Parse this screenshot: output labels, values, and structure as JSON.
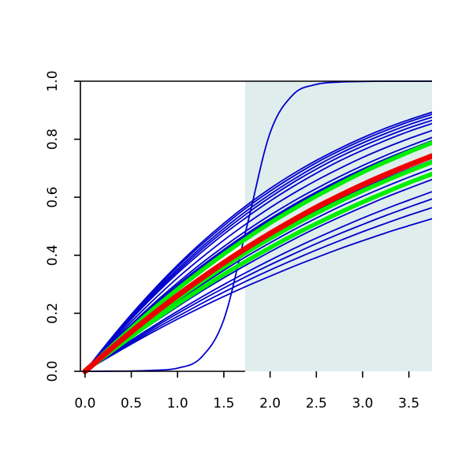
{
  "chart_data": {
    "type": "line",
    "title": "",
    "xlabel": "",
    "ylabel": "",
    "xlim": [
      -0.05,
      3.75
    ],
    "ylim": [
      0.0,
      1.0
    ],
    "x_ticks": [
      0.0,
      0.5,
      1.0,
      1.5,
      2.0,
      2.5,
      3.0,
      3.5
    ],
    "x_tick_labels": [
      "0.0",
      "0.5",
      "1.0",
      "1.5",
      "2.0",
      "2.5",
      "3.0",
      "3.5"
    ],
    "y_ticks": [
      0.0,
      0.2,
      0.4,
      0.6,
      0.8,
      1.0
    ],
    "y_tick_labels": [
      "0.0",
      "0.2",
      "0.4",
      "0.6",
      "0.8",
      "1.0"
    ],
    "shaded_region": {
      "x_from": 1.73,
      "x_to": 3.75,
      "color": "#e0eded"
    },
    "grid": false,
    "legend": "none",
    "x": [
      0.0,
      0.25,
      0.5,
      0.75,
      1.0,
      1.25,
      1.5,
      1.75,
      2.0,
      2.25,
      2.5,
      2.75,
      3.0,
      3.25,
      3.5,
      3.75
    ],
    "series": [
      {
        "color": "#0000cc",
        "width": 1.8,
        "values": [
          0.0,
          0.058,
          0.115,
          0.17,
          0.223,
          0.274,
          0.322,
          0.368,
          0.412,
          0.454,
          0.494,
          0.531,
          0.566,
          0.6,
          0.631,
          0.661
        ]
      },
      {
        "color": "#0000cc",
        "width": 1.8,
        "values": [
          0.0,
          0.064,
          0.126,
          0.185,
          0.242,
          0.296,
          0.348,
          0.397,
          0.443,
          0.487,
          0.528,
          0.567,
          0.603,
          0.637,
          0.669,
          0.699
        ]
      },
      {
        "color": "#0000cc",
        "width": 1.8,
        "values": [
          0.0,
          0.068,
          0.133,
          0.196,
          0.256,
          0.313,
          0.367,
          0.418,
          0.466,
          0.511,
          0.554,
          0.593,
          0.63,
          0.665,
          0.697,
          0.727
        ]
      },
      {
        "color": "#0000cc",
        "width": 1.8,
        "values": [
          0.0,
          0.081,
          0.158,
          0.23,
          0.298,
          0.361,
          0.42,
          0.475,
          0.526,
          0.574,
          0.618,
          0.659,
          0.697,
          0.732,
          0.764,
          0.794
        ]
      },
      {
        "color": "#0000cc",
        "width": 1.8,
        "values": [
          0.0,
          0.083,
          0.162,
          0.236,
          0.305,
          0.37,
          0.43,
          0.486,
          0.538,
          0.586,
          0.63,
          0.671,
          0.709,
          0.744,
          0.776,
          0.806
        ]
      },
      {
        "color": "#0000cc",
        "width": 1.8,
        "values": [
          0.0,
          0.079,
          0.154,
          0.225,
          0.292,
          0.355,
          0.414,
          0.469,
          0.521,
          0.569,
          0.614,
          0.656,
          0.695,
          0.731,
          0.764,
          0.795
        ]
      },
      {
        "color": "#0000cc",
        "width": 1.8,
        "values": [
          0.0,
          0.088,
          0.171,
          0.249,
          0.322,
          0.389,
          0.452,
          0.51,
          0.564,
          0.613,
          0.658,
          0.699,
          0.737,
          0.771,
          0.802,
          0.83
        ]
      },
      {
        "color": "#0000cc",
        "width": 1.8,
        "values": [
          0.0,
          0.093,
          0.18,
          0.262,
          0.338,
          0.408,
          0.473,
          0.532,
          0.587,
          0.637,
          0.683,
          0.725,
          0.762,
          0.796,
          0.827,
          0.854
        ]
      },
      {
        "color": "#0000cc",
        "width": 1.8,
        "values": [
          0.0,
          0.095,
          0.184,
          0.268,
          0.345,
          0.417,
          0.483,
          0.544,
          0.6,
          0.651,
          0.697,
          0.739,
          0.776,
          0.809,
          0.839,
          0.865
        ]
      },
      {
        "color": "#0000cc",
        "width": 1.8,
        "values": [
          0.0,
          0.097,
          0.188,
          0.273,
          0.352,
          0.425,
          0.492,
          0.554,
          0.61,
          0.661,
          0.708,
          0.75,
          0.787,
          0.82,
          0.85,
          0.876
        ]
      },
      {
        "color": "#0000cc",
        "width": 1.8,
        "values": [
          0.0,
          0.099,
          0.192,
          0.279,
          0.36,
          0.434,
          0.502,
          0.565,
          0.621,
          0.672,
          0.719,
          0.76,
          0.797,
          0.83,
          0.86,
          0.886
        ]
      },
      {
        "color": "#0000cc",
        "width": 1.8,
        "values": [
          0.0,
          0.101,
          0.196,
          0.284,
          0.366,
          0.441,
          0.51,
          0.573,
          0.63,
          0.681,
          0.727,
          0.768,
          0.805,
          0.838,
          0.867,
          0.893
        ]
      },
      {
        "color": "#0000cc",
        "width": 1.8,
        "values": [
          0.0,
          0.048,
          0.094,
          0.138,
          0.18,
          0.22,
          0.258,
          0.294,
          0.328,
          0.361,
          0.392,
          0.422,
          0.45,
          0.477,
          0.502,
          0.526
        ]
      },
      {
        "color": "#0000cc",
        "width": 1.8,
        "values": [
          0.0,
          0.05,
          0.098,
          0.145,
          0.189,
          0.232,
          0.273,
          0.312,
          0.349,
          0.384,
          0.418,
          0.45,
          0.481,
          0.51,
          0.538,
          0.564
        ]
      },
      {
        "color": "#0000cc",
        "width": 1.8,
        "values": [
          0.0,
          0.052,
          0.103,
          0.152,
          0.199,
          0.244,
          0.287,
          0.328,
          0.367,
          0.404,
          0.44,
          0.474,
          0.506,
          0.537,
          0.566,
          0.594
        ]
      },
      {
        "color": "#0000cc",
        "width": 1.8,
        "values": [
          0.0,
          0.054,
          0.107,
          0.158,
          0.207,
          0.254,
          0.299,
          0.342,
          0.383,
          0.422,
          0.459,
          0.494,
          0.528,
          0.56,
          0.59,
          0.619
        ]
      },
      {
        "color": "#0000cc",
        "width": 1.8,
        "values": [
          0.0,
          0.0005,
          0.001,
          0.0035,
          0.011,
          0.046,
          0.178,
          0.5,
          0.822,
          0.954,
          0.989,
          0.997,
          0.999,
          1.0,
          1.0,
          1.0
        ]
      },
      {
        "color": "#00ee00",
        "width": 5.5,
        "values": [
          0.0,
          0.075,
          0.148,
          0.218,
          0.283,
          0.345,
          0.404,
          0.459,
          0.511,
          0.559,
          0.604,
          0.646,
          0.686,
          0.722,
          0.756,
          0.788
        ]
      },
      {
        "color": "#00ee00",
        "width": 5.5,
        "values": [
          0.0,
          0.066,
          0.13,
          0.192,
          0.251,
          0.307,
          0.36,
          0.411,
          0.458,
          0.503,
          0.545,
          0.585,
          0.622,
          0.657,
          0.69,
          0.721
        ]
      },
      {
        "color": "#00ee00",
        "width": 5.5,
        "values": [
          0.0,
          0.061,
          0.12,
          0.177,
          0.232,
          0.284,
          0.334,
          0.381,
          0.426,
          0.469,
          0.509,
          0.547,
          0.583,
          0.617,
          0.65,
          0.68
        ]
      },
      {
        "color": "#ee0000",
        "width": 7.0,
        "values": [
          0.0,
          0.069,
          0.136,
          0.2,
          0.261,
          0.319,
          0.374,
          0.426,
          0.475,
          0.521,
          0.565,
          0.605,
          0.643,
          0.678,
          0.711,
          0.742
        ]
      }
    ]
  }
}
